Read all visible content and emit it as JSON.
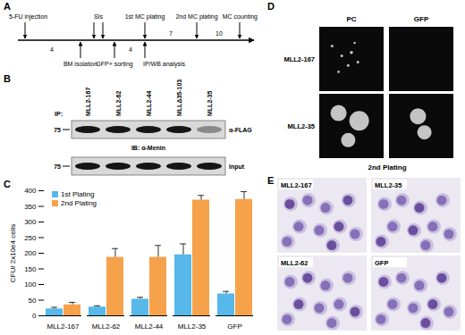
{
  "chart_data": {
    "type": "bar",
    "categories": [
      "MLL2-167",
      "MLL2-62",
      "MLL2-44",
      "MLL2-35",
      "GFP"
    ],
    "series": [
      {
        "name": "1st Plating",
        "color": "#57b8e9",
        "values": [
          22,
          28,
          53,
          195,
          70
        ],
        "errors": [
          5,
          4,
          6,
          35,
          8
        ]
      },
      {
        "name": "2nd Plating",
        "color": "#f6a24a",
        "values": [
          35,
          187,
          187,
          370,
          372
        ],
        "errors": [
          8,
          28,
          38,
          15,
          25
        ]
      }
    ],
    "y_label": "CFU/ 2x10e4 cells",
    "ylim": [
      0,
      400
    ],
    "yticks": [
      0,
      50,
      100,
      150,
      200,
      250,
      300,
      350,
      400
    ],
    "legend": "top-left"
  },
  "figure": {
    "panel_labels": [
      "A",
      "B",
      "C",
      "D",
      "E"
    ],
    "timeline": {
      "above": [
        "5-FU injection",
        "SIs",
        "1st MC plating",
        "2nd MC plating",
        "MC counting"
      ],
      "below": [
        "BM isolation",
        "GFP+ sorting",
        "IP/WB analysis"
      ],
      "intervals": [
        4,
        4,
        7,
        10
      ]
    },
    "blot": {
      "lanes": [
        "MLL2-167",
        "MLL2-62",
        "MLL2-44",
        "MLLΔ35-103",
        "MLL2-35"
      ],
      "ip_label": "IP:",
      "rows": [
        {
          "antibody": "α-FLAG",
          "marker": 75
        },
        {
          "antibody": "Input",
          "marker": 75
        }
      ],
      "ib_label": "IB: α-Menin"
    },
    "colonies": {
      "columns": [
        "PC",
        "GFP"
      ],
      "rows": [
        "MLL2-167",
        "MLL2-35"
      ],
      "caption": "2nd Plating"
    },
    "cytospins": {
      "labels": [
        "MLL2-167",
        "MLL2-35",
        "MLL2-62",
        "GFP"
      ]
    }
  }
}
